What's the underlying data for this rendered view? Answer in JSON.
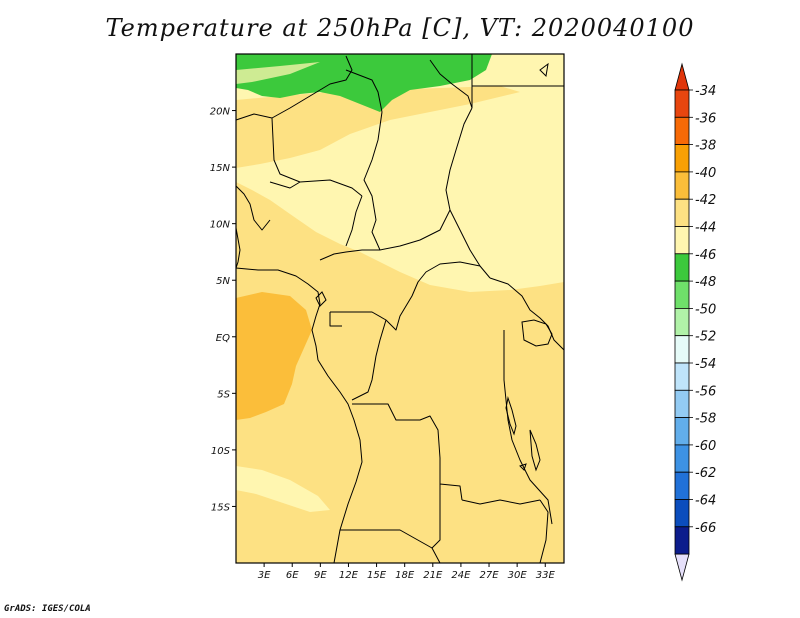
{
  "title": "Temperature at 250hPa [C], VT: 2020040100",
  "credit": "GrADS: IGES/COLA",
  "map": {
    "lat_labels": [
      {
        "label": "20N",
        "lat": 20
      },
      {
        "label": "15N",
        "lat": 15
      },
      {
        "label": "10N",
        "lat": 10
      },
      {
        "label": "5N",
        "lat": 5
      },
      {
        "label": "EQ",
        "lat": 0
      },
      {
        "label": "5S",
        "lat": -5
      },
      {
        "label": "10S",
        "lat": -10
      },
      {
        "label": "15S",
        "lat": -15
      }
    ],
    "lon_labels": [
      {
        "label": "3E",
        "lon": 3
      },
      {
        "label": "6E",
        "lon": 6
      },
      {
        "label": "9E",
        "lon": 9
      },
      {
        "label": "12E",
        "lon": 12
      },
      {
        "label": "15E",
        "lon": 15
      },
      {
        "label": "18E",
        "lon": 18
      },
      {
        "label": "21E",
        "lon": 21
      },
      {
        "label": "24E",
        "lon": 24
      },
      {
        "label": "27E",
        "lon": 27
      },
      {
        "label": "30E",
        "lon": 30
      },
      {
        "label": "33E",
        "lon": 33
      }
    ],
    "lon_range": [
      0,
      35
    ],
    "lat_range": [
      -20,
      25
    ]
  },
  "colorbar": {
    "labels": [
      "-34",
      "-36",
      "-38",
      "-40",
      "-42",
      "-44",
      "-46",
      "-48",
      "-50",
      "-52",
      "-54",
      "-56",
      "-58",
      "-60",
      "-62",
      "-64",
      "-66"
    ],
    "colors": [
      "#e8460f",
      "#f76a07",
      "#f8a004",
      "#fbbe3a",
      "#fde183",
      "#fff6b0",
      "#3cc93c",
      "#6fe06a",
      "#b1f2a8",
      "#e6fbf8",
      "#bfe4fa",
      "#93cbf3",
      "#62aeeb",
      "#3d92e4",
      "#2171d8",
      "#0b4dbd",
      "#0c1c8c"
    ],
    "top_color": "#e0350a",
    "bottom_color": "#e6e0fa"
  }
}
